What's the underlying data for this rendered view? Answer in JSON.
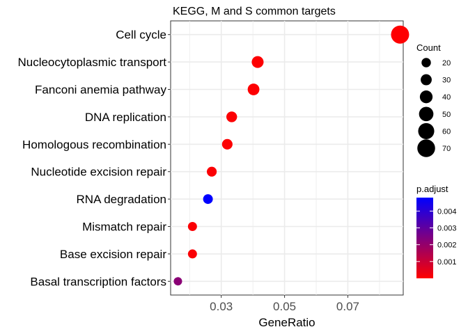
{
  "chart_data": {
    "type": "scatter",
    "title": "KEGG, M and S common targets",
    "xlabel": "GeneRatio",
    "ylabel": "",
    "xlim": [
      0.014,
      0.0875
    ],
    "x_ticks": [
      {
        "value": 0.03,
        "label": "0.03"
      },
      {
        "value": 0.05,
        "label": "0.05"
      },
      {
        "value": 0.07,
        "label": "0.07"
      }
    ],
    "categories": [
      "Cell cycle",
      "Nucleocytoplasmic transport",
      "Fanconi anemia pathway",
      "DNA replication",
      "Homologous recombination",
      "Nucleotide excision repair",
      "RNA degradation",
      "Mismatch repair",
      "Base excision repair",
      "Basal transcription factors"
    ],
    "points": [
      {
        "term": "Cell cycle",
        "gene_ratio": 0.0865,
        "count": 72,
        "p_adjust": 2e-05
      },
      {
        "term": "Nucleocytoplasmic transport",
        "gene_ratio": 0.0415,
        "count": 35,
        "p_adjust": 3e-05
      },
      {
        "term": "Fanconi anemia pathway",
        "gene_ratio": 0.0402,
        "count": 34,
        "p_adjust": 4e-05
      },
      {
        "term": "DNA replication",
        "gene_ratio": 0.0333,
        "count": 28,
        "p_adjust": 5e-05
      },
      {
        "term": "Homologous recombination",
        "gene_ratio": 0.0319,
        "count": 27,
        "p_adjust": 6e-05
      },
      {
        "term": "Nucleotide excision repair",
        "gene_ratio": 0.027,
        "count": 23,
        "p_adjust": 7e-05
      },
      {
        "term": "RNA degradation",
        "gene_ratio": 0.0258,
        "count": 22,
        "p_adjust": 0.0048
      },
      {
        "term": "Mismatch repair",
        "gene_ratio": 0.0209,
        "count": 18,
        "p_adjust": 8e-05
      },
      {
        "term": "Base excision repair",
        "gene_ratio": 0.0209,
        "count": 18,
        "p_adjust": 9e-05
      },
      {
        "term": "Basal transcription factors",
        "gene_ratio": 0.0163,
        "count": 14,
        "p_adjust": 0.0022
      }
    ],
    "size_legend": {
      "title": "Count",
      "values": [
        20,
        30,
        40,
        50,
        60,
        70
      ]
    },
    "color_legend": {
      "title": "p.adjust",
      "range": [
        0.0,
        0.0048
      ],
      "ticks": [
        {
          "value": 0.001,
          "label": "0.001"
        },
        {
          "value": 0.002,
          "label": "0.002"
        },
        {
          "value": 0.003,
          "label": "0.003"
        },
        {
          "value": 0.004,
          "label": "0.004"
        }
      ],
      "low_color": "#ff0000",
      "high_color": "#0000ff"
    },
    "grid": true,
    "legend_position": "right",
    "panel_background": "#ffffff",
    "grid_color": "#ebebeb"
  }
}
